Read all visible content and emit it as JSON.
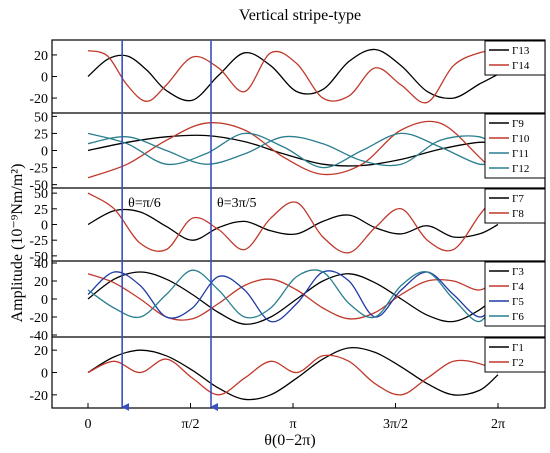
{
  "chart_data": {
    "type": "line",
    "title": "Vertical stripe-type",
    "xlabel": "θ(0−2π)",
    "ylabel": "Amplitude (10⁻⁹Nm/m²)",
    "x_range_rad": [
      0,
      6.2832
    ],
    "x_ticks": [
      {
        "value": 0,
        "label": "0"
      },
      {
        "value": 1.5708,
        "label": "π/2"
      },
      {
        "value": 3.1416,
        "label": "π"
      },
      {
        "value": 4.7124,
        "label": "3π/2"
      },
      {
        "value": 6.2832,
        "label": "2π"
      }
    ],
    "markers": [
      {
        "x": 0.5236,
        "label": "θ=π/6"
      },
      {
        "x": 1.885,
        "label": "θ=3π/5"
      }
    ],
    "colors": {
      "black": "#000000",
      "red": "#c0392b",
      "teal": "#2a7f8f",
      "blue": "#1f3aa6",
      "marker": "#3a4fc2"
    },
    "panels": [
      {
        "ylim": [
          -32,
          32
        ],
        "yticks": [
          -20,
          0,
          20
        ],
        "ytick_labels": [
          "-20",
          "0",
          "20"
        ],
        "series": [
          {
            "name": "Γ13",
            "color": "#000000",
            "x": [
              0,
              0.3,
              0.6,
              0.9,
              1.2,
              1.6,
              2.0,
              2.4,
              2.8,
              3.2,
              3.6,
              4.0,
              4.4,
              4.8,
              5.2,
              5.6,
              6.0,
              6.2832
            ],
            "y": [
              0,
              16,
              19,
              6,
              -13,
              -22,
              1,
              22,
              10,
              -14,
              -12,
              14,
              25,
              10,
              -14,
              -20,
              -7,
              2
            ]
          },
          {
            "name": "Γ14",
            "color": "#c0392b",
            "x": [
              0,
              0.3,
              0.6,
              0.9,
              1.2,
              1.6,
              2.0,
              2.4,
              2.8,
              3.2,
              3.6,
              4.0,
              4.4,
              4.8,
              5.2,
              5.6,
              6.0,
              6.2832
            ],
            "y": [
              24,
              19,
              -8,
              -23,
              -8,
              18,
              8,
              -14,
              22,
              12,
              -20,
              -18,
              8,
              -8,
              -24,
              10,
              22,
              24
            ]
          }
        ]
      },
      {
        "ylim": [
          -52,
          52
        ],
        "yticks": [
          -50,
          -25,
          0,
          25,
          50
        ],
        "ytick_labels": [
          "-50",
          "-25",
          "0",
          "25",
          "50"
        ],
        "series": [
          {
            "name": "Γ9",
            "color": "#000000",
            "x": [
              0,
              0.6,
              1.2,
              1.8,
              2.4,
              3.0,
              3.6,
              4.2,
              4.8,
              5.4,
              6.0,
              6.2832
            ],
            "y": [
              0,
              12,
              20,
              22,
              13,
              -5,
              -20,
              -22,
              -13,
              2,
              12,
              8
            ]
          },
          {
            "name": "Γ10",
            "color": "#c0392b",
            "x": [
              0,
              0.6,
              1.2,
              1.8,
              2.4,
              3.0,
              3.6,
              4.2,
              4.8,
              5.4,
              6.0,
              6.2832
            ],
            "y": [
              -40,
              -20,
              15,
              40,
              30,
              -10,
              -35,
              -20,
              30,
              40,
              -10,
              -38
            ]
          },
          {
            "name": "Γ11",
            "color": "#2a7f8f",
            "x": [
              0,
              0.6,
              1.2,
              1.8,
              2.4,
              3.0,
              3.6,
              4.2,
              4.8,
              5.4,
              6.0,
              6.2832
            ],
            "y": [
              25,
              10,
              -20,
              -5,
              25,
              5,
              -25,
              0,
              25,
              5,
              -20,
              -10
            ]
          },
          {
            "name": "Γ12",
            "color": "#2a7f8f",
            "x": [
              0,
              0.6,
              1.2,
              1.8,
              2.4,
              3.0,
              3.6,
              4.2,
              4.8,
              5.4,
              6.0,
              6.2832
            ],
            "y": [
              10,
              20,
              0,
              -20,
              -5,
              20,
              10,
              -15,
              -20,
              15,
              20,
              0
            ]
          }
        ]
      },
      {
        "ylim": [
          -55,
          55
        ],
        "yticks": [
          -50,
          -25,
          0,
          25,
          50
        ],
        "ytick_labels": [
          "-50",
          "-25",
          "0",
          "25",
          "50"
        ],
        "series": [
          {
            "name": "Γ7",
            "color": "#000000",
            "x": [
              0,
              0.4,
              0.8,
              1.2,
              1.6,
              2.0,
              2.4,
              2.8,
              3.2,
              3.6,
              4.0,
              4.4,
              4.8,
              5.2,
              5.6,
              6.0,
              6.2832
            ],
            "y": [
              0,
              22,
              20,
              -3,
              -25,
              -5,
              5,
              -10,
              -15,
              5,
              15,
              -5,
              -15,
              -2,
              -20,
              -15,
              0
            ]
          },
          {
            "name": "Γ8",
            "color": "#c0392b",
            "x": [
              0,
              0.4,
              0.8,
              1.2,
              1.6,
              2.0,
              2.4,
              2.8,
              3.2,
              3.6,
              4.0,
              4.4,
              4.8,
              5.2,
              5.6,
              6.0,
              6.2832
            ],
            "y": [
              50,
              25,
              -30,
              -40,
              10,
              -8,
              -40,
              10,
              35,
              -20,
              -45,
              -5,
              25,
              -25,
              -40,
              15,
              52
            ]
          }
        ]
      },
      {
        "ylim": [
          -40,
          40
        ],
        "yticks": [
          -40,
          -20,
          0,
          20,
          40
        ],
        "ytick_labels": [
          "-40",
          "-20",
          "0",
          "20",
          "40"
        ],
        "series": [
          {
            "name": "Γ3",
            "color": "#000000",
            "x": [
              0,
              0.4,
              0.8,
              1.2,
              1.6,
              2.0,
              2.4,
              2.8,
              3.2,
              3.6,
              4.0,
              4.4,
              4.8,
              5.2,
              5.6,
              6.0,
              6.2832
            ],
            "y": [
              0,
              22,
              30,
              22,
              5,
              -15,
              -28,
              -20,
              0,
              20,
              28,
              18,
              0,
              -18,
              -25,
              -12,
              5
            ]
          },
          {
            "name": "Γ4",
            "color": "#c0392b",
            "x": [
              0,
              0.4,
              0.8,
              1.2,
              1.6,
              2.0,
              2.4,
              2.8,
              3.2,
              3.6,
              4.0,
              4.4,
              4.8,
              5.2,
              5.6,
              6.0,
              6.2832
            ],
            "y": [
              28,
              18,
              0,
              -20,
              -22,
              -5,
              15,
              22,
              10,
              -10,
              -22,
              -15,
              5,
              20,
              20,
              10,
              25
            ]
          },
          {
            "name": "Γ5",
            "color": "#1f3aa6",
            "x": [
              0,
              0.4,
              0.8,
              1.2,
              1.6,
              2.0,
              2.4,
              2.8,
              3.2,
              3.6,
              4.0,
              4.4,
              4.8,
              5.2,
              5.6,
              6.0,
              6.2832
            ],
            "y": [
              5,
              30,
              15,
              -20,
              -10,
              25,
              10,
              -25,
              -5,
              30,
              20,
              -20,
              10,
              30,
              5,
              -20,
              0
            ]
          },
          {
            "name": "Γ6",
            "color": "#2a7f8f",
            "x": [
              0,
              0.4,
              0.8,
              1.2,
              1.6,
              2.0,
              2.4,
              2.8,
              3.2,
              3.6,
              4.0,
              4.4,
              4.8,
              5.2,
              5.6,
              6.0,
              6.2832
            ],
            "y": [
              10,
              -10,
              -20,
              5,
              32,
              10,
              -20,
              -10,
              25,
              30,
              -5,
              -20,
              15,
              30,
              0,
              -25,
              8
            ]
          }
        ]
      },
      {
        "ylim": [
          -30,
          30
        ],
        "yticks": [
          -20,
          0,
          20
        ],
        "ytick_labels": [
          "-20",
          "0",
          "20"
        ],
        "series": [
          {
            "name": "Γ1",
            "color": "#000000",
            "x": [
              0,
              0.4,
              0.8,
              1.2,
              1.6,
              2.0,
              2.4,
              2.8,
              3.2,
              3.6,
              4.0,
              4.4,
              4.8,
              5.2,
              5.6,
              6.0,
              6.2832
            ],
            "y": [
              0,
              14,
              20,
              15,
              2,
              -14,
              -24,
              -20,
              -5,
              12,
              22,
              18,
              5,
              -10,
              -20,
              -16,
              -2
            ]
          },
          {
            "name": "Γ2",
            "color": "#c0392b",
            "x": [
              0,
              0.4,
              0.8,
              1.2,
              1.6,
              2.0,
              2.4,
              2.8,
              3.2,
              3.6,
              4.0,
              4.4,
              4.8,
              5.2,
              5.6,
              6.0,
              6.2832
            ],
            "y": [
              0,
              10,
              0,
              12,
              -5,
              -20,
              -5,
              10,
              0,
              15,
              10,
              -10,
              -20,
              -5,
              10,
              8,
              0
            ]
          }
        ]
      }
    ]
  }
}
